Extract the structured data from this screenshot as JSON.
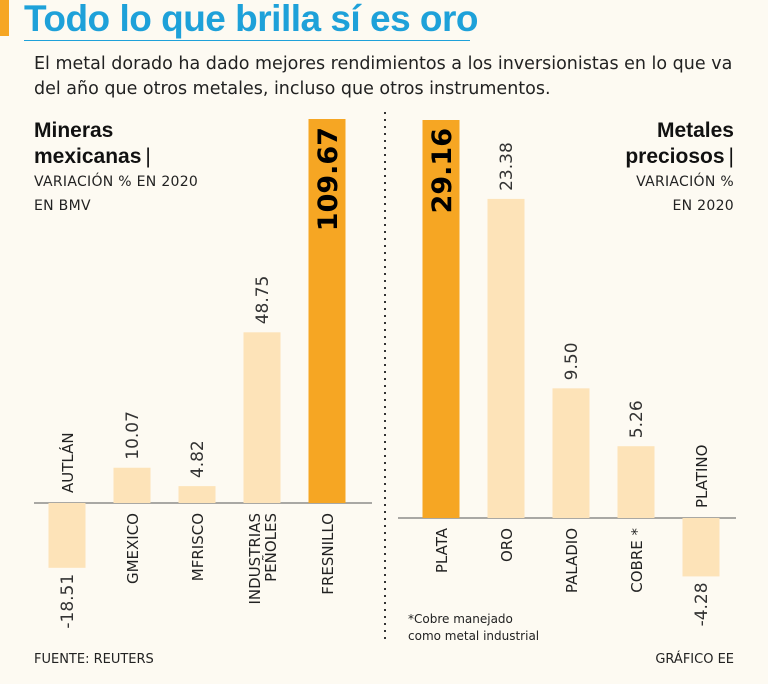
{
  "header": {
    "title": "Todo lo que brilla sí es oro",
    "subtitle": "El metal dorado ha dado mejores rendimientos a los inversionistas en lo que va del año que otros metales, incluso que otros instrumentos."
  },
  "colors": {
    "accent": "#f6a623",
    "title": "#1ea1d9",
    "bar": "#fde3b8",
    "highlight": "#f6a623"
  },
  "chart_data": [
    {
      "type": "bar",
      "title_line1": "Mineras",
      "title_line2": "mexicanas",
      "separator": "|",
      "subtitle_line1": "VARIACIÓN % EN 2020",
      "subtitle_line2": "EN BMV",
      "categories": [
        "AUTLÁN",
        "GMEXICO",
        "MFRISCO",
        "INDUSTRIAS PEÑOLES",
        "FRESNILLO"
      ],
      "values": [
        -18.51,
        10.07,
        4.82,
        48.75,
        109.67
      ],
      "value_labels": [
        "-18.51",
        "10.07",
        "4.82",
        "48.75",
        "109.67"
      ],
      "highlight_index": 4
    },
    {
      "type": "bar",
      "title_line1": "Metales",
      "title_line2": "preciosos",
      "separator": "|",
      "subtitle_line1": "VARIACIÓN %",
      "subtitle_line2": "EN 2020",
      "categories": [
        "PLATA",
        "ORO",
        "PALADIO",
        "COBRE *",
        "PLATINO"
      ],
      "values": [
        29.16,
        23.38,
        9.5,
        5.26,
        -4.28
      ],
      "value_labels": [
        "29.16",
        "23.38",
        "9.50",
        "5.26",
        "-4.28"
      ],
      "highlight_index": 0
    }
  ],
  "note": {
    "line1": "*Cobre manejado",
    "line2": "como metal industrial"
  },
  "footer": {
    "source": "FUENTE: REUTERS",
    "credit": "GRÁFICO EE"
  }
}
